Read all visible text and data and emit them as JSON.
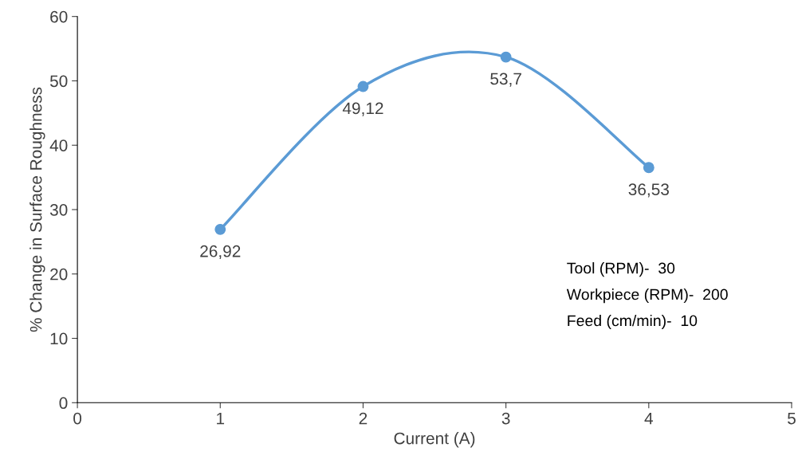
{
  "chart_data": {
    "type": "line",
    "xlabel": "Current (A)",
    "ylabel": "% Change in Surface Roughness",
    "x": [
      1,
      2,
      3,
      4
    ],
    "series": [
      {
        "color": "#5b9bd5",
        "values": [
          26.92,
          49.12,
          53.7,
          36.53
        ],
        "value_labels": [
          "26,92",
          "49,12",
          "53,7",
          "36,53"
        ]
      }
    ],
    "xlim": [
      0,
      5
    ],
    "xticks": [
      0,
      1,
      2,
      3,
      4,
      5
    ],
    "ylim": [
      0,
      60
    ],
    "yticks": [
      0,
      10,
      20,
      30,
      40,
      50,
      60
    ],
    "marker": "circle",
    "line_style": "solid",
    "grid": false,
    "annotations": [
      "Tool (RPM)-  30",
      "Workpiece (RPM)-  200",
      "Feed (cm/min)-  10"
    ]
  }
}
